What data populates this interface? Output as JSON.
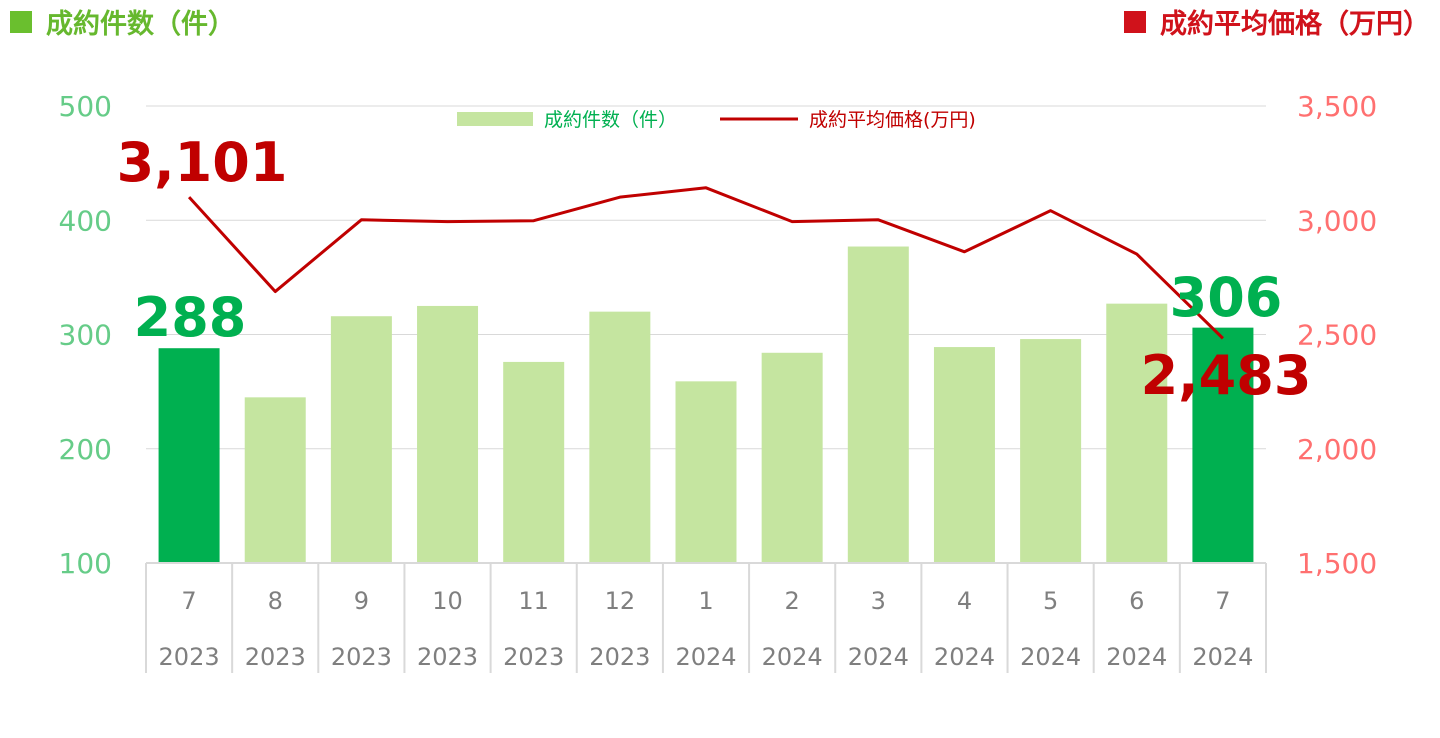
{
  "titles": {
    "left": "成約件数（件）",
    "right": "成約平均価格（万円）"
  },
  "colors": {
    "left_title": "#66b82e",
    "left_square": "#6abf2e",
    "right_title": "#d0121b",
    "right_square": "#d0121b",
    "bar_light": "#c5e5a0",
    "bar_highlight": "#00b050",
    "line": "#c00000",
    "left_axis_text": "#66cc88",
    "right_axis_text": "#ff7070",
    "gridline": "#d9d9d9",
    "category_text": "#7f7f7f",
    "legend_bar_text": "#00b050",
    "legend_line_text": "#c00000",
    "callout_count": "#00b050",
    "callout_price": "#c00000"
  },
  "chart_data": {
    "type": "bar",
    "categories": [
      {
        "month": "7",
        "year": "2023"
      },
      {
        "month": "8",
        "year": "2023"
      },
      {
        "month": "9",
        "year": "2023"
      },
      {
        "month": "10",
        "year": "2023"
      },
      {
        "month": "11",
        "year": "2023"
      },
      {
        "month": "12",
        "year": "2023"
      },
      {
        "month": "1",
        "year": "2024"
      },
      {
        "month": "2",
        "year": "2024"
      },
      {
        "month": "3",
        "year": "2024"
      },
      {
        "month": "4",
        "year": "2024"
      },
      {
        "month": "5",
        "year": "2024"
      },
      {
        "month": "6",
        "year": "2024"
      },
      {
        "month": "7",
        "year": "2024"
      }
    ],
    "series": [
      {
        "name": "成約件数（件）",
        "type": "bar",
        "axis": "left",
        "values": [
          288,
          245,
          316,
          325,
          276,
          320,
          259,
          284,
          377,
          289,
          296,
          327,
          306
        ],
        "highlight_indices": [
          0,
          12
        ]
      },
      {
        "name": "成約平均価格(万円)",
        "type": "line",
        "axis": "right",
        "values": [
          3101,
          2688,
          3002,
          2994,
          2998,
          3101,
          3142,
          2994,
          3002,
          2862,
          3042,
          2852,
          2483
        ]
      }
    ],
    "left_axis": {
      "ylim": [
        100,
        500
      ],
      "ticks": [
        "100",
        "200",
        "300",
        "400",
        "500"
      ]
    },
    "right_axis": {
      "ylim": [
        1500,
        3500
      ],
      "ticks": [
        "1,500",
        "2,000",
        "2,500",
        "3,000",
        "3,500"
      ]
    },
    "legend": {
      "placement": "top-center"
    },
    "grid": true,
    "callouts": {
      "first_count": "288",
      "last_count": "306",
      "first_price": "3,101",
      "last_price": "2,483"
    }
  }
}
